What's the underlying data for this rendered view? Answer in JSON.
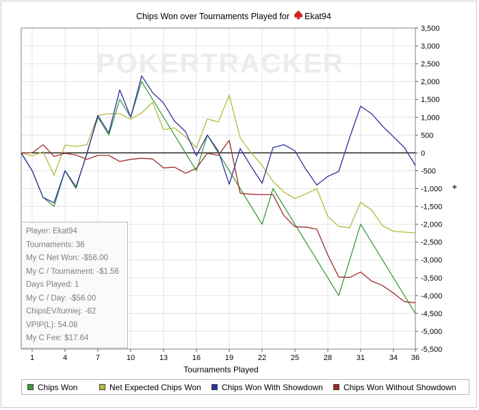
{
  "chart_data": {
    "type": "line",
    "title": "Chips Won over Tournaments Played for",
    "player_name": "Ekat94",
    "xlabel": "Tournaments Played",
    "ylabel": "",
    "watermark": "POKERTRACKER",
    "xlim": [
      0,
      36
    ],
    "ylim": [
      -5500,
      3500
    ],
    "x_ticks": [
      1,
      4,
      7,
      10,
      13,
      16,
      19,
      22,
      25,
      28,
      31,
      34,
      36
    ],
    "y_ticks": [
      3500,
      3000,
      2500,
      2000,
      1500,
      1000,
      500,
      0,
      -500,
      -1000,
      -1500,
      -2000,
      -2500,
      -3000,
      -3500,
      -4000,
      -4500,
      -5000,
      -5500
    ],
    "y_tick_labels": [
      "3,500",
      "3,000",
      "2,500",
      "2,000",
      "1,500",
      "1,000",
      "500",
      "0",
      "-500",
      "-1,000",
      "-1,500",
      "-2,000",
      "-2,500",
      "-3,000",
      "-3,500",
      "-4,000",
      "-4,500",
      "-5,000",
      "-5,500"
    ],
    "grid": true,
    "legend_position": "bottom",
    "series": [
      {
        "name": "Chips Won",
        "color": "#3a9a3a",
        "x": [
          0,
          1,
          2,
          3,
          4,
          5,
          6,
          7,
          8,
          9,
          10,
          11,
          12,
          13,
          14,
          15,
          16,
          17,
          18,
          19,
          20,
          21,
          22,
          23,
          24,
          25,
          26,
          27,
          28,
          29,
          30,
          31,
          32,
          33,
          34,
          35,
          36
        ],
        "y": [
          0,
          -500,
          -1250,
          -1500,
          -500,
          -1000,
          0,
          1000,
          500,
          1500,
          1000,
          2000,
          1500,
          1000,
          500,
          0,
          -500,
          500,
          0,
          -500,
          -1000,
          -1500,
          -2000,
          -1000,
          -1500,
          -2000,
          -2500,
          -3000,
          -3500,
          -4000,
          -3000,
          -2000,
          -2500,
          -3000,
          -3500,
          -4000,
          -4500
        ]
      },
      {
        "name": "Net Expected Chips Won",
        "color": "#b3b83a",
        "x": [
          0,
          1,
          2,
          3,
          4,
          5,
          6,
          7,
          8,
          9,
          10,
          11,
          12,
          13,
          14,
          15,
          16,
          17,
          18,
          19,
          20,
          21,
          22,
          23,
          24,
          25,
          26,
          27,
          28,
          29,
          30,
          31,
          32,
          33,
          34,
          35,
          36
        ],
        "y": [
          0,
          -80,
          30,
          -630,
          220,
          180,
          230,
          1050,
          1100,
          1100,
          950,
          1120,
          1420,
          650,
          700,
          450,
          150,
          950,
          870,
          1620,
          420,
          0,
          -350,
          -800,
          -1100,
          -1280,
          -1150,
          -1000,
          -1780,
          -2060,
          -2100,
          -1380,
          -1600,
          -2040,
          -2200,
          -2220,
          -2240
        ]
      },
      {
        "name": "Chips Won With Showdown",
        "color": "#2a2f9a",
        "x": [
          0,
          1,
          2,
          3,
          4,
          5,
          6,
          7,
          8,
          9,
          10,
          11,
          12,
          13,
          14,
          15,
          16,
          17,
          18,
          19,
          20,
          21,
          22,
          23,
          24,
          25,
          26,
          27,
          28,
          29,
          30,
          31,
          32,
          33,
          34,
          35,
          36
        ],
        "y": [
          0,
          -500,
          -1250,
          -1400,
          -500,
          -950,
          -30,
          1050,
          560,
          1770,
          1000,
          2160,
          1690,
          1400,
          890,
          600,
          -80,
          500,
          50,
          -880,
          120,
          -380,
          -850,
          150,
          230,
          60,
          -460,
          -900,
          -660,
          -520,
          430,
          1310,
          1100,
          750,
          450,
          150,
          -350
        ]
      },
      {
        "name": "Chips Won Without Showdown",
        "color": "#9a2a2a",
        "x": [
          0,
          1,
          2,
          3,
          4,
          5,
          6,
          7,
          8,
          9,
          10,
          11,
          12,
          13,
          14,
          15,
          16,
          17,
          18,
          19,
          20,
          21,
          22,
          23,
          24,
          25,
          26,
          27,
          28,
          29,
          30,
          31,
          32,
          33,
          34,
          35,
          36
        ],
        "y": [
          0,
          0,
          230,
          -100,
          -10,
          -60,
          -180,
          -70,
          -70,
          -240,
          -180,
          -150,
          -170,
          -420,
          -400,
          -570,
          -430,
          -10,
          -70,
          350,
          -1130,
          -1160,
          -1170,
          -1170,
          -1760,
          -2070,
          -2080,
          -2140,
          -2860,
          -3480,
          -3490,
          -3340,
          -3590,
          -3720,
          -3930,
          -4170,
          -4200
        ]
      }
    ]
  },
  "stats": {
    "player": "Player: Ekat94",
    "tournaments": "Tournaments: 36",
    "net_won": "My C Net Won: -$56.00",
    "per_tournament": "My C / Tournament: -$1.56",
    "days_played": "Days Played: 1",
    "per_day": "My C / Day: -$56.00",
    "chips_ev": "ChipsEV/turniej: -62",
    "vpip": "VPIP(L): 54.08",
    "fee": "My C Fee: $17.64"
  }
}
